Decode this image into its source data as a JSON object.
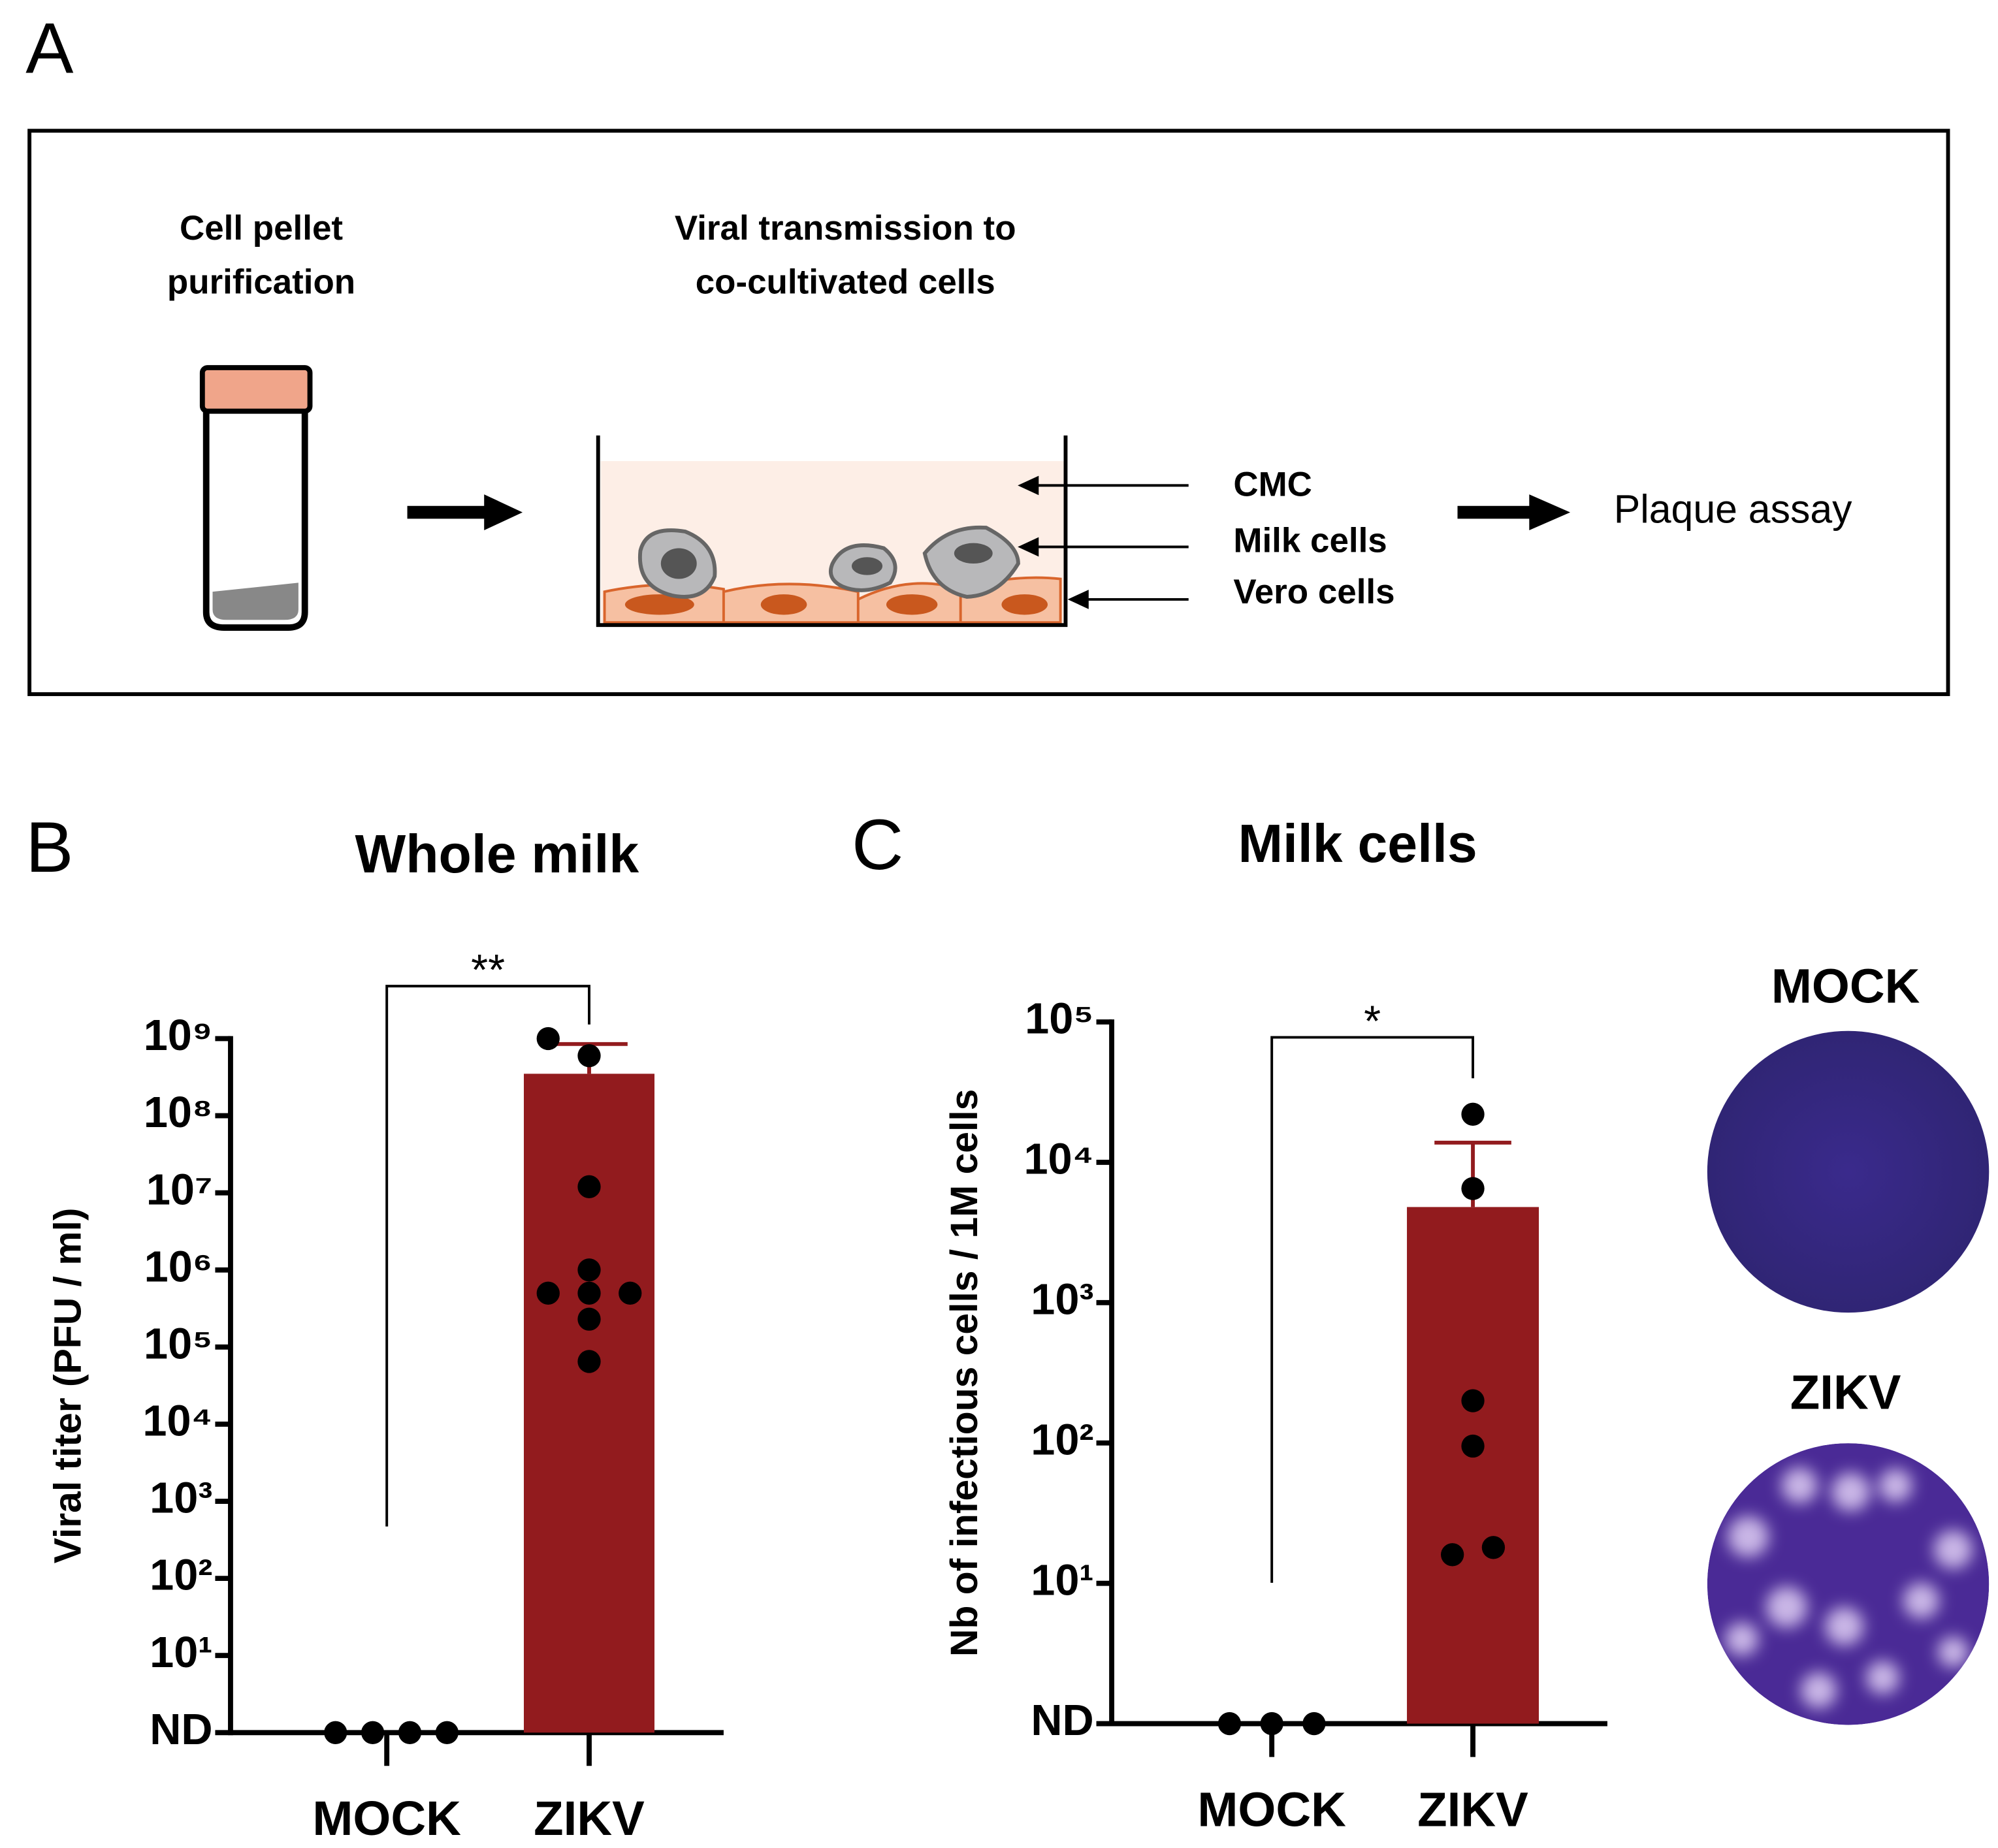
{
  "panel_labels": [
    "A",
    "B",
    "C"
  ],
  "diagram": {
    "step1": [
      "Cell pellet",
      "purification"
    ],
    "step2": [
      "Viral transmission to",
      "co-cultivated cells"
    ],
    "layers": [
      "CMC",
      "Milk cells",
      "Vero cells"
    ],
    "result": "Plaque assay"
  },
  "chart_data": [
    {
      "type": "bar",
      "title": "Whole milk",
      "ylabel": "Viral titer (PFU / ml)",
      "categories": [
        "MOCK",
        "ZIKV"
      ],
      "values": [
        null,
        350000000
      ],
      "errors": [
        null,
        500000000
      ],
      "points": [
        [
          1,
          1,
          1,
          1
        ],
        [
          1000000000,
          600000000,
          12000000,
          1000000,
          500000,
          500000,
          500000,
          230000,
          65000
        ]
      ],
      "color": "#921b1e",
      "log_scale": true,
      "ylim": [
        1,
        1000000000
      ],
      "yticks": [
        {
          "value": 1,
          "label": "ND"
        },
        {
          "value": 10,
          "label": "10¹"
        },
        {
          "value": 100,
          "label": "10²"
        },
        {
          "value": 1000,
          "label": "10³"
        },
        {
          "value": 10000,
          "label": "10⁴"
        },
        {
          "value": 100000,
          "label": "10⁵"
        },
        {
          "value": 1000000,
          "label": "10⁶"
        },
        {
          "value": 10000000,
          "label": "10⁷"
        },
        {
          "value": 100000000,
          "label": "10⁸"
        },
        {
          "value": 1000000000,
          "label": "10⁹"
        }
      ],
      "significance": "**"
    },
    {
      "type": "bar",
      "title": "Milk cells",
      "ylabel": "Nb of infectious cells / 1M cells",
      "categories": [
        "MOCK",
        "ZIKV"
      ],
      "values": [
        null,
        4800
      ],
      "errors": [
        null,
        9000
      ],
      "points": [
        [
          1,
          1,
          1
        ],
        [
          22000,
          6500,
          200,
          95,
          18,
          16
        ]
      ],
      "color": "#921b1e",
      "log_scale": true,
      "ylim": [
        1,
        100000
      ],
      "yticks": [
        {
          "value": 1,
          "label": "ND"
        },
        {
          "value": 10,
          "label": "10¹"
        },
        {
          "value": 100,
          "label": "10²"
        },
        {
          "value": 1000,
          "label": "10³"
        },
        {
          "value": 10000,
          "label": "10⁴"
        },
        {
          "value": 100000,
          "label": "10⁵"
        }
      ],
      "significance": "*"
    }
  ],
  "plaque_images": [
    "MOCK",
    "ZIKV"
  ]
}
